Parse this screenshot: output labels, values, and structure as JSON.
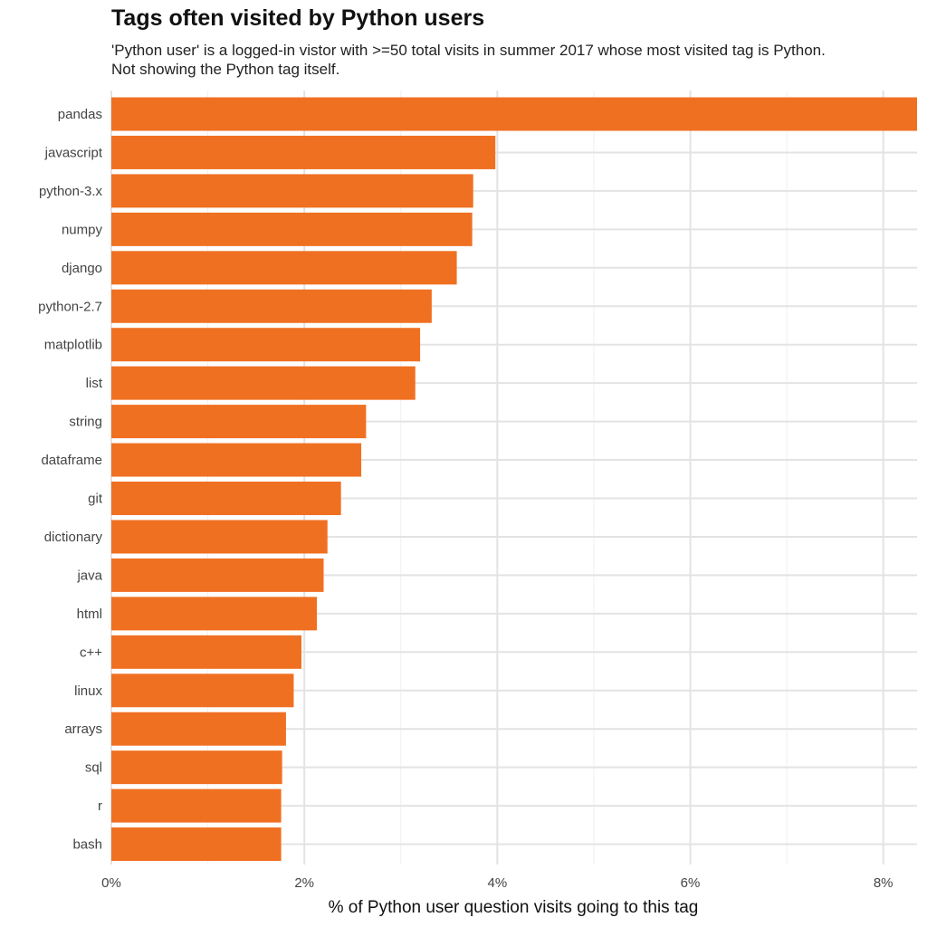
{
  "chart_data": {
    "type": "bar",
    "orientation": "horizontal",
    "title": "Tags often visited by Python users",
    "subtitle": [
      "'Python user' is a logged-in vistor with >=50 total visits in summer 2017 whose most visited tag is Python.",
      "Not showing the Python tag itself."
    ],
    "xlabel": "% of Python user question visits going to this tag",
    "ylabel": "",
    "categories": [
      "pandas",
      "javascript",
      "python-3.x",
      "numpy",
      "django",
      "python-2.7",
      "matplotlib",
      "list",
      "string",
      "dataframe",
      "git",
      "dictionary",
      "java",
      "html",
      "c++",
      "linux",
      "arrays",
      "sql",
      "r",
      "bash"
    ],
    "values": [
      8.35,
      3.98,
      3.75,
      3.74,
      3.58,
      3.32,
      3.2,
      3.15,
      2.64,
      2.59,
      2.38,
      2.24,
      2.2,
      2.13,
      1.97,
      1.89,
      1.81,
      1.77,
      1.76,
      1.76
    ],
    "xlim": [
      0,
      8.35
    ],
    "xticks": [
      0,
      2,
      4,
      6,
      8
    ],
    "xtick_labels": [
      "0%",
      "2%",
      "4%",
      "6%",
      "8%"
    ],
    "bar_color": "#f07022",
    "grid": true
  }
}
